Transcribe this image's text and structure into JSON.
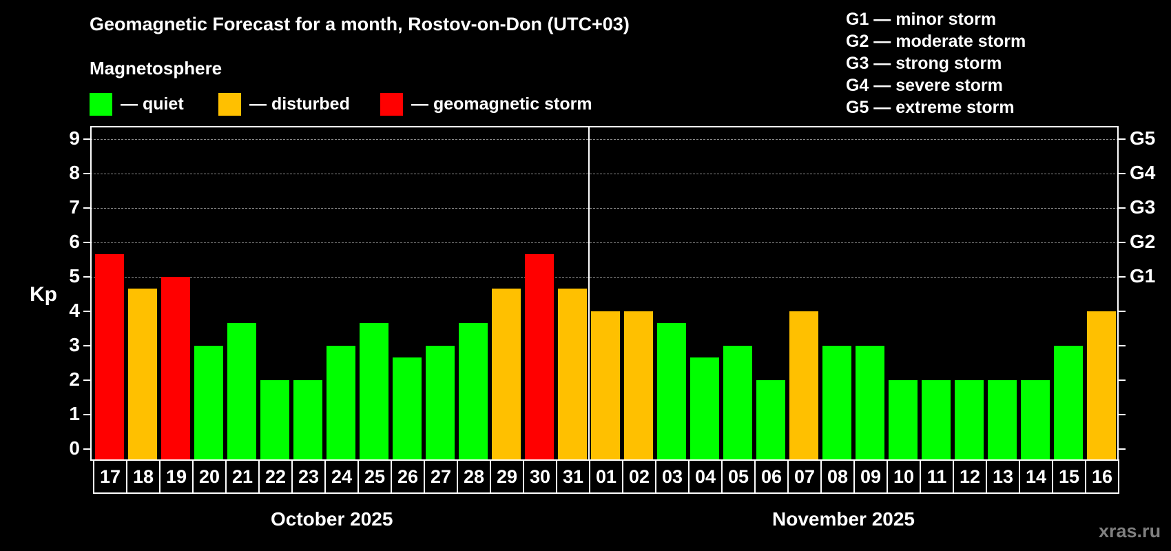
{
  "header": {
    "title": "Geomagnetic Forecast for a month, Rostov-on-Don (UTC+03)",
    "subtitle": "Magnetosphere"
  },
  "legend": [
    {
      "label": "— quiet",
      "color": "#00ff00"
    },
    {
      "label": "— disturbed",
      "color": "#ffc000"
    },
    {
      "label": "— geomagnetic storm",
      "color": "#ff0000"
    }
  ],
  "g_scale": [
    "G1 — minor storm",
    "G2 — moderate storm",
    "G3 — strong storm",
    "G4 — severe storm",
    "G5 — extreme storm"
  ],
  "axes": {
    "ylabel": "Kp",
    "left_ticks": [
      "0",
      "1",
      "2",
      "3",
      "4",
      "5",
      "6",
      "7",
      "8",
      "9"
    ],
    "right_ticks": {
      "5": "G1",
      "6": "G2",
      "7": "G3",
      "8": "G4",
      "9": "G5"
    }
  },
  "months": [
    "October 2025",
    "November 2025"
  ],
  "watermark": "xras.ru",
  "colors": {
    "quiet": "#00ff00",
    "disturbed": "#ffc000",
    "storm": "#ff0000",
    "background": "#000000",
    "grid": "#8a8a8a"
  },
  "chart_data": {
    "type": "bar",
    "title": "Geomagnetic Forecast for a month, Rostov-on-Don (UTC+03)",
    "xlabel": "",
    "ylabel": "Kp",
    "ylim": [
      0,
      9
    ],
    "grid": true,
    "categories": [
      "17",
      "18",
      "19",
      "20",
      "21",
      "22",
      "23",
      "24",
      "25",
      "26",
      "27",
      "28",
      "29",
      "30",
      "31",
      "01",
      "02",
      "03",
      "04",
      "05",
      "06",
      "07",
      "08",
      "09",
      "10",
      "11",
      "12",
      "13",
      "14",
      "15",
      "16"
    ],
    "values": [
      5.67,
      4.67,
      5,
      3,
      3.67,
      2,
      2,
      3,
      3.67,
      2.67,
      3,
      3.67,
      4.67,
      5.67,
      4.67,
      4,
      4,
      3.67,
      2.67,
      3,
      2,
      4,
      3,
      3,
      2,
      2,
      2,
      2,
      2,
      3,
      4
    ],
    "status": [
      "storm",
      "disturbed",
      "storm",
      "quiet",
      "quiet",
      "quiet",
      "quiet",
      "quiet",
      "quiet",
      "quiet",
      "quiet",
      "quiet",
      "disturbed",
      "storm",
      "disturbed",
      "disturbed",
      "disturbed",
      "quiet",
      "quiet",
      "quiet",
      "quiet",
      "disturbed",
      "quiet",
      "quiet",
      "quiet",
      "quiet",
      "quiet",
      "quiet",
      "quiet",
      "quiet",
      "disturbed"
    ],
    "month_groups": [
      {
        "label": "October 2025",
        "from": "17",
        "to": "31"
      },
      {
        "label": "November 2025",
        "from": "01",
        "to": "16"
      }
    ],
    "secondary_axis": {
      "5": "G1",
      "6": "G2",
      "7": "G3",
      "8": "G4",
      "9": "G5"
    },
    "legend": [
      "quiet",
      "disturbed",
      "geomagnetic storm"
    ]
  }
}
